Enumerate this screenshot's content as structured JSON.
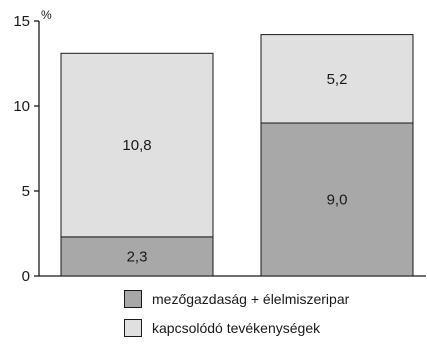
{
  "chart_data": {
    "type": "bar",
    "stacked": true,
    "categories": [
      "",
      ""
    ],
    "series": [
      {
        "name": "mezőgazdaság + élelmiszeripar",
        "values": [
          2.3,
          9.0
        ],
        "labels": [
          "2,3",
          "9,0"
        ],
        "color": "#a8a8a8"
      },
      {
        "name": "kapcsolódó tevékenységek",
        "values": [
          10.8,
          5.2
        ],
        "labels": [
          "10,8",
          "5,2"
        ],
        "color": "#e0e0e0"
      }
    ],
    "ylabel": "%",
    "ylim": [
      0,
      15
    ],
    "yticks": [
      0,
      5,
      10,
      15
    ],
    "ytick_labels": [
      "0",
      "5",
      "10",
      "15"
    ],
    "grid": false,
    "legend_position": "bottom"
  }
}
